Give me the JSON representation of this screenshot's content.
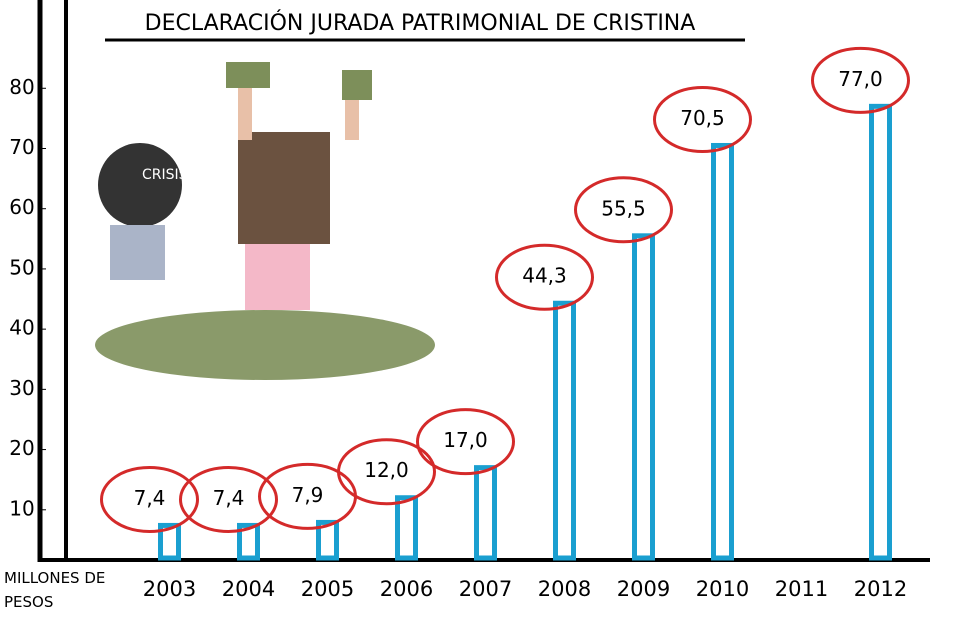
{
  "chart_data": {
    "type": "bar",
    "title": "DECLARACIÓN JURADA PATRIMONIAL DE CRISTINA",
    "y_label": "MILLONES DE PESOS",
    "categories": [
      "2003",
      "2004",
      "2005",
      "2006",
      "2007",
      "2008",
      "2009",
      "2010",
      "2011",
      "2012"
    ],
    "values": [
      7.4,
      7.4,
      7.9,
      12.0,
      17.0,
      44.3,
      55.5,
      70.5,
      null,
      77.0
    ],
    "value_labels": [
      "7,4",
      "7,4",
      "7,9",
      "12,0",
      "17,0",
      "44,3",
      "55,5",
      "70,5",
      null,
      "77,0"
    ],
    "color": "#1a9fd0",
    "ylim": [
      0,
      93
    ],
    "yticks": [
      10,
      20,
      30,
      40,
      50,
      60,
      70,
      80
    ],
    "grid": false
  }
}
